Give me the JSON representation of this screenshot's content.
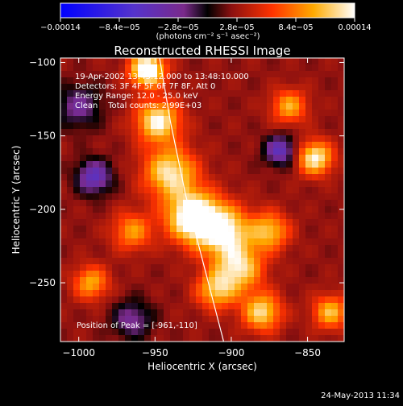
{
  "chart_data": {
    "type": "heatmap",
    "title": "Reconstructed RHESSI Image",
    "xlabel": "Heliocentric X (arcsec)",
    "ylabel": "Heliocentric Y (arcsec)",
    "xlim": [
      -1012,
      -826
    ],
    "ylim": [
      -290,
      -97
    ],
    "x_ticks": [
      -1000,
      -950,
      -900,
      -850
    ],
    "x_tick_labels": [
      "−1000",
      "−950",
      "−900",
      "−850"
    ],
    "y_ticks": [
      -250,
      -200,
      -150,
      -100
    ],
    "y_tick_labels": [
      "−250",
      "−200",
      "−150",
      "−100"
    ],
    "colorbar": {
      "min": -0.00014,
      "max": 0.00014,
      "units": "(photons cm⁻² s⁻¹ asec⁻²)",
      "tick_values": [
        -0.00014,
        -8.4e-05,
        -2.8e-05,
        2.8e-05,
        8.4e-05,
        0.00014
      ],
      "tick_labels": [
        "−0.00014",
        "−8.4e−05",
        "−2.8e−05",
        "2.8e−05",
        "8.4e−05",
        "0.00014"
      ]
    },
    "annotations": [
      "19-Apr-2002 13:43:12.000 to 13:48:10.000",
      "Detectors: 3F 4F 5F 6F 7F 8F, Att 0",
      "Energy Range: 12.0 - 25.0 keV",
      "Clean    Total counts: 2.99E+03"
    ],
    "peak_label": "Position of Peak = [-961,-110]",
    "limb": [
      [
        -947,
        -97
      ],
      [
        -940,
        -140
      ],
      [
        -930,
        -190
      ],
      [
        -920,
        -230
      ],
      [
        -905,
        -290
      ]
    ],
    "intensity_blobs": [
      {
        "x": -955,
        "y": -105,
        "sigma": 8,
        "amp": 1.0
      },
      {
        "x": -948,
        "y": -140,
        "sigma": 10,
        "amp": 0.8
      },
      {
        "x": -940,
        "y": -175,
        "sigma": 12,
        "amp": 0.75
      },
      {
        "x": -925,
        "y": -205,
        "sigma": 12,
        "amp": 1.0
      },
      {
        "x": -905,
        "y": -215,
        "sigma": 12,
        "amp": 0.8
      },
      {
        "x": -895,
        "y": -240,
        "sigma": 11,
        "amp": 0.7
      },
      {
        "x": -910,
        "y": -255,
        "sigma": 9,
        "amp": 0.6
      },
      {
        "x": -880,
        "y": -270,
        "sigma": 9,
        "amp": 0.7
      },
      {
        "x": -875,
        "y": -215,
        "sigma": 9,
        "amp": 0.6
      },
      {
        "x": -845,
        "y": -165,
        "sigma": 8,
        "amp": 0.8
      },
      {
        "x": -862,
        "y": -130,
        "sigma": 8,
        "amp": 0.55
      },
      {
        "x": -965,
        "y": -215,
        "sigma": 9,
        "amp": 0.5
      },
      {
        "x": -992,
        "y": -250,
        "sigma": 8,
        "amp": 0.55
      },
      {
        "x": -835,
        "y": -270,
        "sigma": 8,
        "amp": 0.6
      },
      {
        "x": -990,
        "y": -178,
        "sigma": 8,
        "amp": -0.6
      },
      {
        "x": -868,
        "y": -160,
        "sigma": 7,
        "amp": -0.6
      },
      {
        "x": -965,
        "y": -275,
        "sigma": 9,
        "amp": -0.4
      },
      {
        "x": -1000,
        "y": -130,
        "sigma": 10,
        "amp": -0.4
      }
    ]
  },
  "footer": {
    "timestamp": "24-May-2013 11:34"
  }
}
